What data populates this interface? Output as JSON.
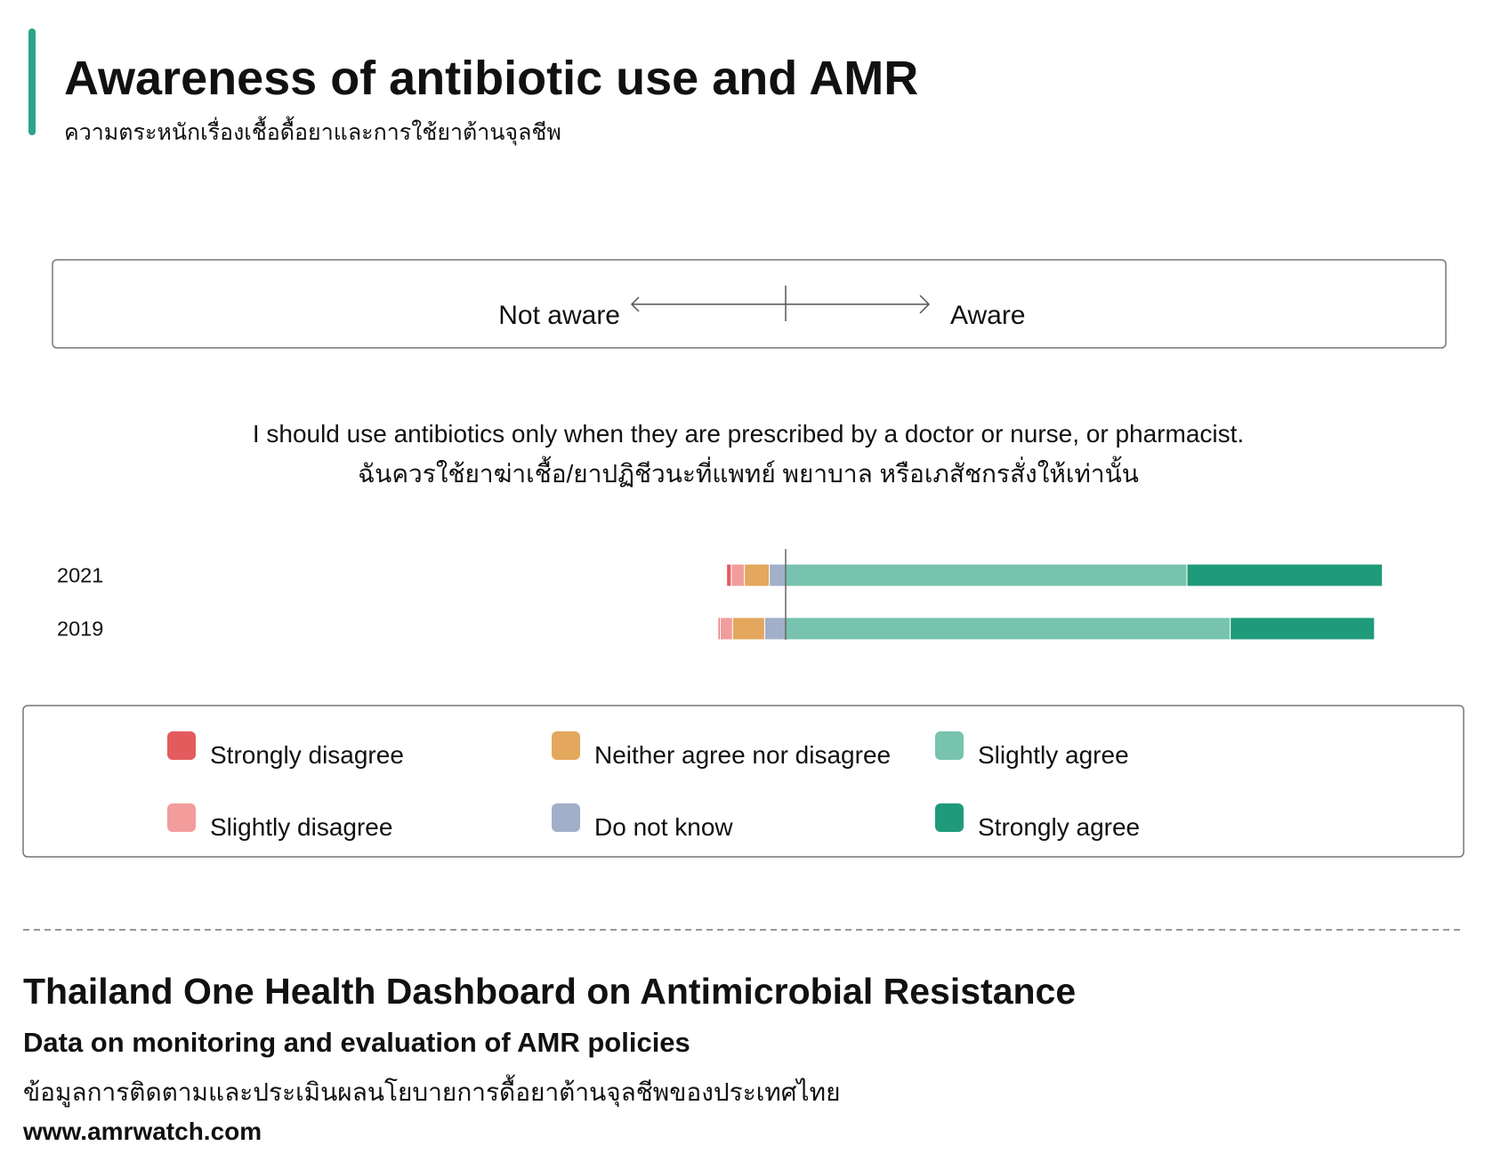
{
  "chart_data": {
    "type": "diverging_bar",
    "title": "Awareness of antibiotic use and AMR",
    "subtitle": "ความตระหนักเรื่องเชื้อดื้อยาและการใช้ยาต้านจุลชีพ",
    "scale_left": "Not aware",
    "scale_right": "Aware",
    "question": [
      "I should use antibiotics only when they are prescribed by a doctor or nurse, or pharmacist.",
      "ฉันควรใช้ยาฆ่าเชื้อ/ยาปฏิชีวนะที่แพทย์ พยาบาล หรือเภสัชกรสั่งให้เท่านั้น"
    ],
    "categories": [
      "2021",
      "2019"
    ],
    "series": [
      {
        "name": "Strongly disagree",
        "color": "#e45b5e",
        "values": [
          0.7,
          0.3
        ]
      },
      {
        "name": "Slightly disagree",
        "color": "#f29c9c",
        "values": [
          2.0,
          1.9
        ]
      },
      {
        "name": "Neither agree nor disagree",
        "color": "#e3a75d",
        "values": [
          3.8,
          4.9
        ]
      },
      {
        "name": "Do not know",
        "color": "#a1afc9",
        "values": [
          2.5,
          3.2
        ]
      },
      {
        "name": "Slightly agree",
        "color": "#77c3ae",
        "values": [
          61.2,
          67.8
        ]
      },
      {
        "name": "Strongly agree",
        "color": "#1f9a7a",
        "values": [
          29.8,
          22.0
        ]
      }
    ]
  },
  "footer": {
    "title": "Thailand One Health Dashboard on Antimicrobial Resistance",
    "subtitle": "Data on monitoring and evaluation of AMR policies",
    "thai": "ข้อมูลการติดตามและประเมินผลนโยบายการดื้อยาต้านจุลชีพของประเทศไทย",
    "url": "www.amrwatch.com"
  }
}
